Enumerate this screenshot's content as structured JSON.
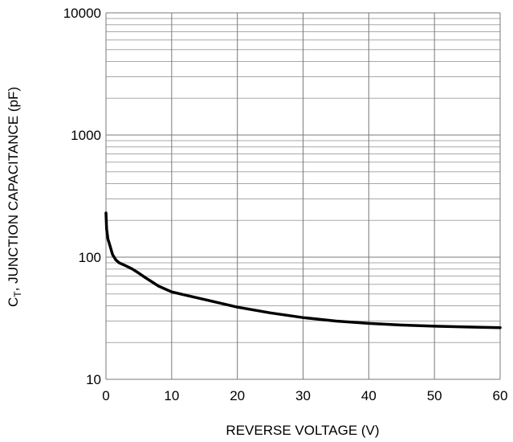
{
  "chart_data": {
    "type": "line",
    "title": "",
    "xlabel": "REVERSE VOLTAGE (V)",
    "ylabel": {
      "main": "C",
      "subscript": "T",
      "rest": ", JUNCTION CAPACITANCE (pF)"
    },
    "xlim": [
      0,
      60
    ],
    "ylim": [
      10,
      10000
    ],
    "yscale": "log",
    "grid": true,
    "legend": "none",
    "x_ticks": [
      "0",
      "10",
      "20",
      "30",
      "40",
      "50",
      "60"
    ],
    "y_ticks": [
      "10",
      "100",
      "1000",
      "10000"
    ],
    "series": [
      {
        "color": "#000000",
        "x": [
          0,
          0.1,
          0.3,
          0.5,
          1,
          1.5,
          2,
          3,
          4,
          5,
          6,
          8,
          10,
          12,
          15,
          20,
          25,
          30,
          35,
          40,
          45,
          50,
          55,
          60
        ],
        "y": [
          230,
          170,
          140,
          130,
          105,
          95,
          90,
          85,
          80,
          74,
          68,
          58,
          52,
          49,
          45,
          39,
          35,
          32,
          30,
          28.7,
          27.8,
          27.2,
          26.8,
          26.5
        ]
      }
    ]
  }
}
